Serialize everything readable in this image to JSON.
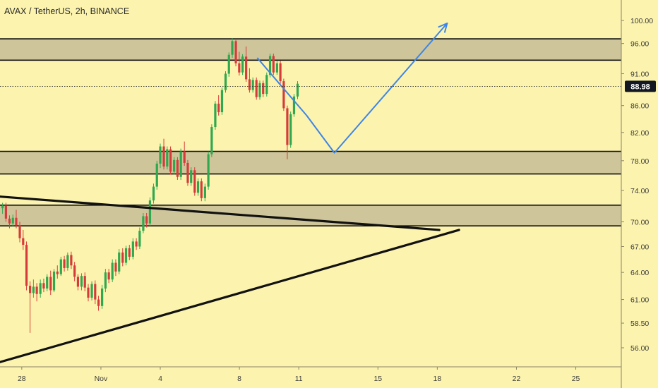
{
  "header": {
    "title": "AVAX / TetherUS, 2h, BINANCE"
  },
  "colors": {
    "background": "#fcf4ae",
    "zone_fill": "#cec69a",
    "zone_border": "#111111",
    "trendline": "#111111",
    "projection": "#3d85e8",
    "candle_up": "#2fa84f",
    "candle_down": "#d63b3b",
    "price_badge": "#131722"
  },
  "chart_data": {
    "type": "candlestick",
    "symbol": "AVAX / TetherUS",
    "interval": "2h",
    "exchange": "BINANCE",
    "x_tick_labels": [
      "28",
      "Nov",
      "4",
      "8",
      "11",
      "15",
      "18",
      "22",
      "25"
    ],
    "x_tick_days": [
      -4,
      0,
      3,
      7,
      10,
      14,
      17,
      21,
      24
    ],
    "x_range_days": [
      -5.1,
      26.3
    ],
    "y_tick_labels": [
      "100.00",
      "96.00",
      "91.00",
      "86.00",
      "82.00",
      "78.00",
      "74.00",
      "70.00",
      "67.00",
      "64.00",
      "61.00",
      "58.50",
      "56.00"
    ],
    "y_tick_values": [
      100.0,
      96.0,
      91.0,
      86.0,
      82.0,
      78.0,
      74.0,
      70.0,
      67.0,
      64.0,
      61.0,
      58.5,
      56.0
    ],
    "y_scale": "log",
    "current_price": 88.98,
    "current_price_label": "88.98",
    "zones": [
      {
        "name": "resistance-zone",
        "low": 93.2,
        "high": 96.8
      },
      {
        "name": "mid-support-zone",
        "low": 76.2,
        "high": 79.3
      },
      {
        "name": "lower-support-zone",
        "low": 69.5,
        "high": 72.1
      }
    ],
    "trendlines": [
      {
        "name": "upper-descending-trendline",
        "points": [
          [
            -5.1,
            73.2
          ],
          [
            17.1,
            69.0
          ]
        ]
      },
      {
        "name": "lower-ascending-trendline",
        "points": [
          [
            -5.1,
            54.6
          ],
          [
            18.1,
            69.0
          ]
        ]
      }
    ],
    "projection_path": [
      [
        7.9,
        93.6
      ],
      [
        10.4,
        84.5
      ],
      [
        11.8,
        79.1
      ],
      [
        17.5,
        99.5
      ]
    ],
    "candles": [
      [
        -4.97,
        71.7,
        72.4,
        71.0,
        72.0
      ],
      [
        -4.8,
        72.0,
        72.4,
        70.0,
        70.4
      ],
      [
        -4.62,
        70.4,
        70.8,
        69.2,
        69.8
      ],
      [
        -4.45,
        69.8,
        70.9,
        69.4,
        70.5
      ],
      [
        -4.28,
        70.5,
        71.5,
        69.2,
        69.6
      ],
      [
        -4.1,
        69.6,
        70.0,
        67.5,
        68.0
      ],
      [
        -3.93,
        68.0,
        69.0,
        66.6,
        67.2
      ],
      [
        -3.76,
        67.2,
        67.6,
        62.0,
        62.5
      ],
      [
        -3.58,
        62.5,
        63.0,
        57.5,
        61.7
      ],
      [
        -3.41,
        61.7,
        63.2,
        61.2,
        62.4
      ],
      [
        -3.24,
        62.4,
        62.8,
        60.8,
        61.6
      ],
      [
        -3.06,
        61.6,
        63.2,
        61.2,
        62.8
      ],
      [
        -2.89,
        62.8,
        63.3,
        61.8,
        62.2
      ],
      [
        -2.72,
        62.2,
        63.8,
        61.9,
        63.5
      ],
      [
        -2.54,
        63.5,
        64.2,
        61.5,
        62.0
      ],
      [
        -2.37,
        62.0,
        64.4,
        61.8,
        64.1
      ],
      [
        -2.2,
        64.1,
        64.8,
        63.3,
        63.8
      ],
      [
        -2.02,
        63.8,
        65.8,
        63.6,
        65.5
      ],
      [
        -1.85,
        65.5,
        65.9,
        64.1,
        64.5
      ],
      [
        -1.68,
        64.5,
        66.3,
        64.2,
        66.0
      ],
      [
        -1.5,
        66.0,
        66.4,
        64.4,
        64.8
      ],
      [
        -1.33,
        64.8,
        65.2,
        63.0,
        63.5
      ],
      [
        -1.16,
        63.5,
        63.8,
        62.0,
        62.4
      ],
      [
        -0.98,
        62.4,
        63.9,
        62.0,
        63.6
      ],
      [
        -0.81,
        63.6,
        64.0,
        61.9,
        62.3
      ],
      [
        -0.64,
        62.3,
        62.7,
        60.8,
        61.2
      ],
      [
        -0.46,
        61.2,
        63.0,
        60.9,
        62.7
      ],
      [
        -0.29,
        62.7,
        63.1,
        60.5,
        61.0
      ],
      [
        -0.12,
        61.0,
        61.4,
        59.8,
        60.3
      ],
      [
        0.06,
        60.3,
        62.6,
        60.0,
        62.2
      ],
      [
        0.23,
        62.2,
        64.4,
        61.8,
        64.0
      ],
      [
        0.4,
        64.0,
        64.4,
        62.8,
        63.2
      ],
      [
        0.58,
        63.2,
        65.5,
        62.9,
        65.1
      ],
      [
        0.75,
        65.1,
        65.5,
        63.6,
        64.1
      ],
      [
        0.92,
        64.1,
        66.7,
        63.8,
        66.3
      ],
      [
        1.1,
        66.3,
        66.8,
        64.7,
        65.1
      ],
      [
        1.27,
        65.1,
        67.1,
        64.8,
        66.8
      ],
      [
        1.44,
        66.8,
        67.2,
        65.4,
        65.8
      ],
      [
        1.62,
        65.8,
        68.0,
        65.5,
        67.6
      ],
      [
        1.79,
        67.6,
        68.0,
        66.6,
        67.0
      ],
      [
        1.96,
        67.0,
        69.3,
        66.7,
        68.9
      ],
      [
        2.14,
        68.9,
        71.1,
        68.6,
        70.7
      ],
      [
        2.31,
        70.7,
        71.1,
        69.3,
        69.8
      ],
      [
        2.48,
        69.8,
        73.1,
        69.5,
        72.7
      ],
      [
        2.66,
        72.7,
        74.9,
        72.3,
        74.5
      ],
      [
        2.83,
        74.5,
        78.0,
        74.1,
        77.6
      ],
      [
        3.0,
        77.6,
        80.4,
        77.0,
        80.0
      ],
      [
        3.18,
        80.0,
        81.1,
        76.8,
        77.2
      ],
      [
        3.35,
        77.2,
        80.0,
        76.8,
        79.6
      ],
      [
        3.52,
        79.6,
        80.0,
        76.1,
        76.5
      ],
      [
        3.7,
        76.5,
        78.5,
        76.1,
        78.1
      ],
      [
        3.87,
        78.1,
        78.5,
        75.4,
        75.8
      ],
      [
        4.04,
        75.8,
        79.7,
        75.4,
        79.3
      ],
      [
        4.22,
        79.3,
        80.7,
        77.3,
        77.7
      ],
      [
        4.39,
        77.7,
        78.1,
        74.6,
        75.0
      ],
      [
        4.56,
        75.0,
        77.1,
        74.6,
        76.7
      ],
      [
        4.74,
        76.7,
        77.1,
        73.3,
        73.7
      ],
      [
        4.91,
        73.7,
        75.6,
        73.3,
        75.2
      ],
      [
        5.08,
        75.2,
        75.6,
        72.6,
        73.0
      ],
      [
        5.26,
        73.0,
        74.9,
        72.6,
        74.5
      ],
      [
        5.43,
        74.5,
        79.3,
        74.1,
        78.9
      ],
      [
        5.6,
        78.9,
        83.2,
        78.5,
        82.8
      ],
      [
        5.78,
        82.8,
        86.7,
        82.4,
        86.3
      ],
      [
        5.95,
        86.3,
        87.6,
        84.5,
        85.0
      ],
      [
        6.12,
        85.0,
        88.8,
        84.6,
        88.4
      ],
      [
        6.3,
        88.4,
        91.4,
        88.0,
        91.0
      ],
      [
        6.47,
        91.0,
        94.5,
        90.5,
        94.1
      ],
      [
        6.64,
        94.1,
        96.9,
        93.6,
        96.4
      ],
      [
        6.82,
        96.4,
        96.8,
        92.2,
        92.7
      ],
      [
        6.99,
        92.7,
        94.6,
        90.7,
        91.2
      ],
      [
        7.16,
        91.2,
        94.2,
        90.8,
        93.8
      ],
      [
        7.34,
        93.8,
        95.5,
        89.7,
        90.1
      ],
      [
        7.51,
        90.1,
        91.9,
        88.0,
        88.4
      ],
      [
        7.68,
        88.4,
        90.4,
        88.0,
        90.0
      ],
      [
        7.86,
        90.0,
        90.4,
        86.9,
        87.3
      ],
      [
        8.03,
        87.3,
        89.9,
        86.9,
        89.5
      ],
      [
        8.2,
        89.5,
        89.9,
        87.3,
        87.8
      ],
      [
        8.38,
        87.8,
        91.2,
        87.4,
        90.8
      ],
      [
        8.55,
        90.8,
        94.3,
        90.4,
        93.9
      ],
      [
        8.72,
        93.9,
        94.3,
        90.8,
        91.2
      ],
      [
        8.9,
        91.2,
        93.1,
        90.8,
        92.7
      ],
      [
        9.07,
        92.7,
        93.1,
        89.4,
        89.8
      ],
      [
        9.24,
        89.8,
        90.2,
        85.2,
        85.6
      ],
      [
        9.42,
        85.6,
        86.0,
        78.2,
        80.2
      ],
      [
        9.59,
        80.2,
        85.1,
        79.8,
        84.7
      ],
      [
        9.76,
        84.7,
        87.8,
        84.3,
        87.4
      ],
      [
        9.94,
        87.4,
        89.8,
        87.0,
        89.4
      ]
    ]
  }
}
